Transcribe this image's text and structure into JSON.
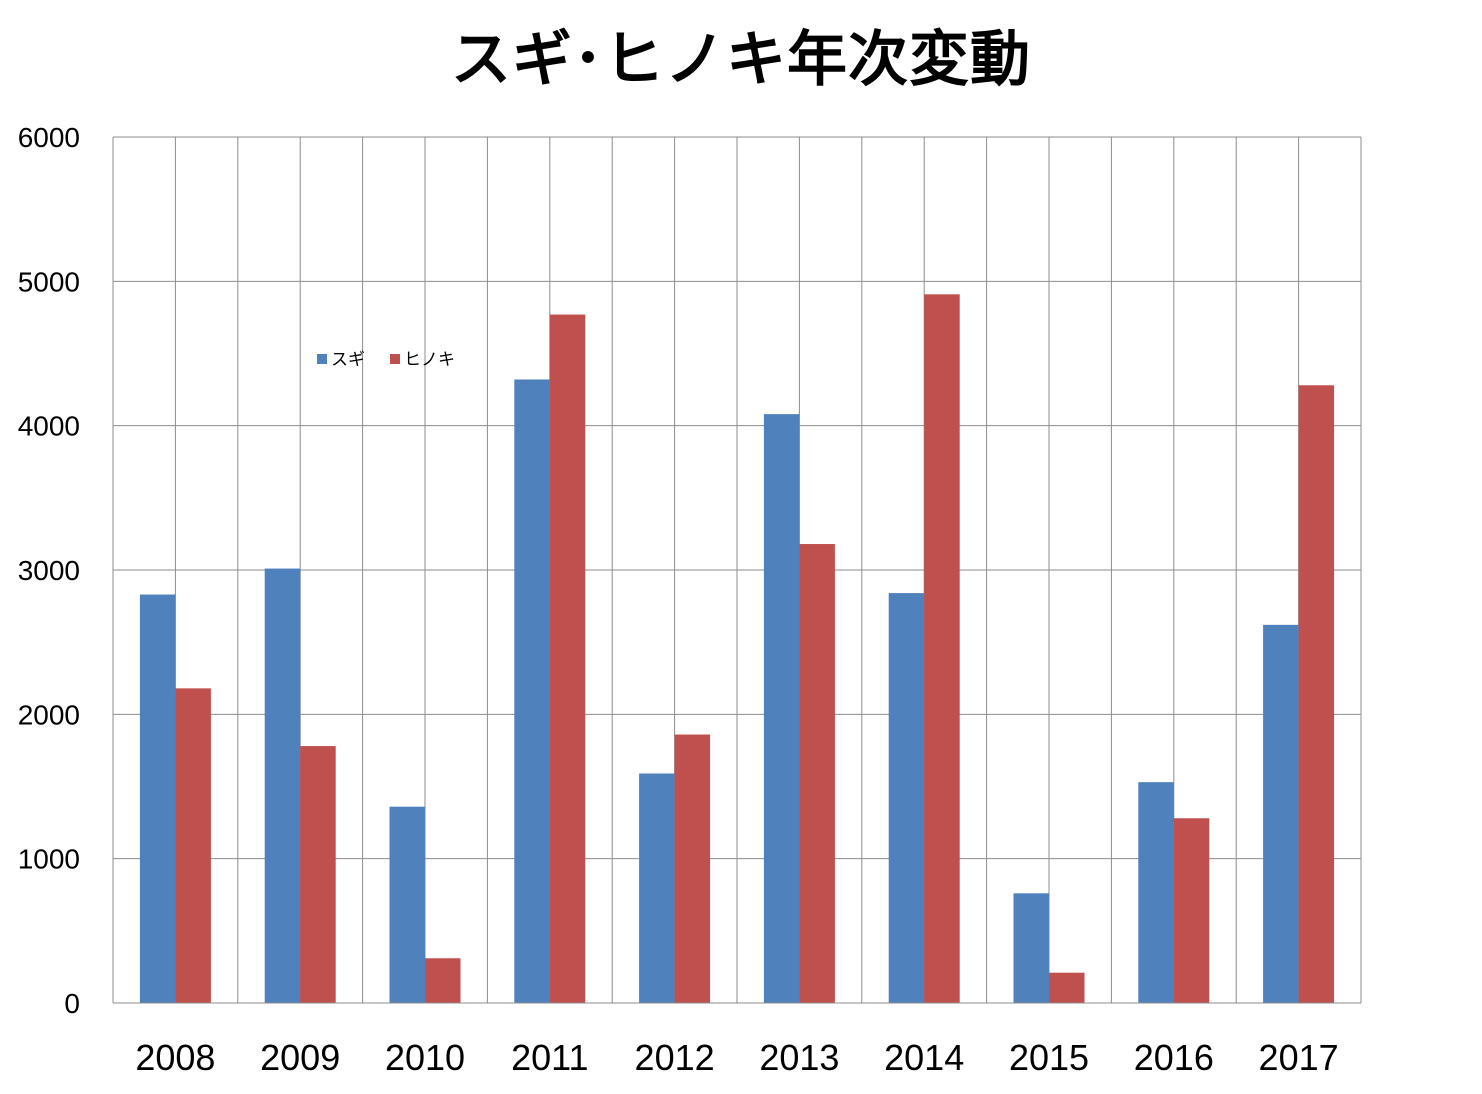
{
  "chart_data": {
    "type": "bar",
    "title": "スギ･ヒノキ年次変動",
    "xlabel": "",
    "ylabel": "",
    "categories": [
      "2008",
      "2009",
      "2010",
      "2011",
      "2012",
      "2013",
      "2014",
      "2015",
      "2016",
      "2017"
    ],
    "series": [
      {
        "name": "スギ",
        "color": "#4F81BD",
        "values": [
          2830,
          3010,
          1360,
          4320,
          1590,
          4080,
          2840,
          760,
          1530,
          2620
        ]
      },
      {
        "name": "ヒノキ",
        "color": "#C0504D",
        "values": [
          2180,
          1780,
          310,
          4770,
          1860,
          3180,
          4910,
          210,
          1280,
          4280
        ]
      }
    ],
    "ylim": [
      0,
      6000
    ],
    "yticks": [
      "0",
      "1000",
      "2000",
      "3000",
      "4000",
      "5000",
      "6000"
    ],
    "grid": true,
    "legend_position": "upper-left inside plot area"
  }
}
